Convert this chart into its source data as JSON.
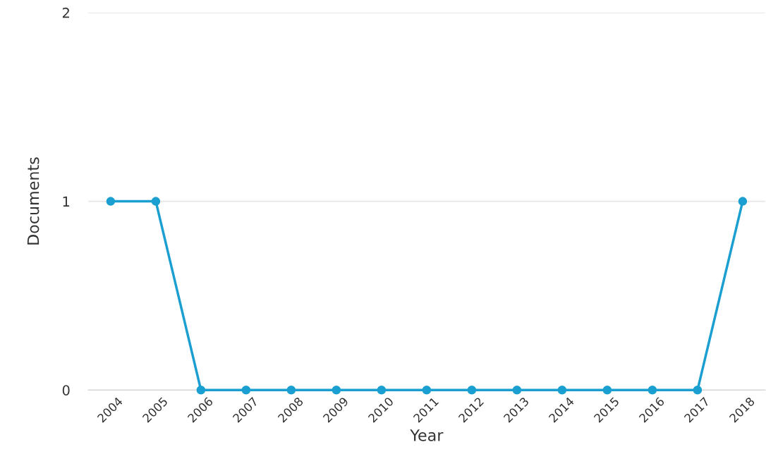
{
  "chart_data": {
    "type": "line",
    "xlabel": "Year",
    "ylabel": "Documents",
    "categories": [
      "2004",
      "2005",
      "2006",
      "2007",
      "2008",
      "2009",
      "2010",
      "2011",
      "2012",
      "2013",
      "2014",
      "2015",
      "2016",
      "2017",
      "2018"
    ],
    "series": [
      {
        "color": "#1a9fd0",
        "values": [
          1,
          1,
          0,
          0,
          0,
          0,
          0,
          0,
          0,
          0,
          0,
          0,
          0,
          0,
          1
        ]
      }
    ],
    "ylim": [
      0,
      2
    ],
    "yticks": [
      0,
      1,
      2
    ],
    "grid": "y",
    "marker": "circle",
    "line_style": "solid",
    "legend": false
  }
}
